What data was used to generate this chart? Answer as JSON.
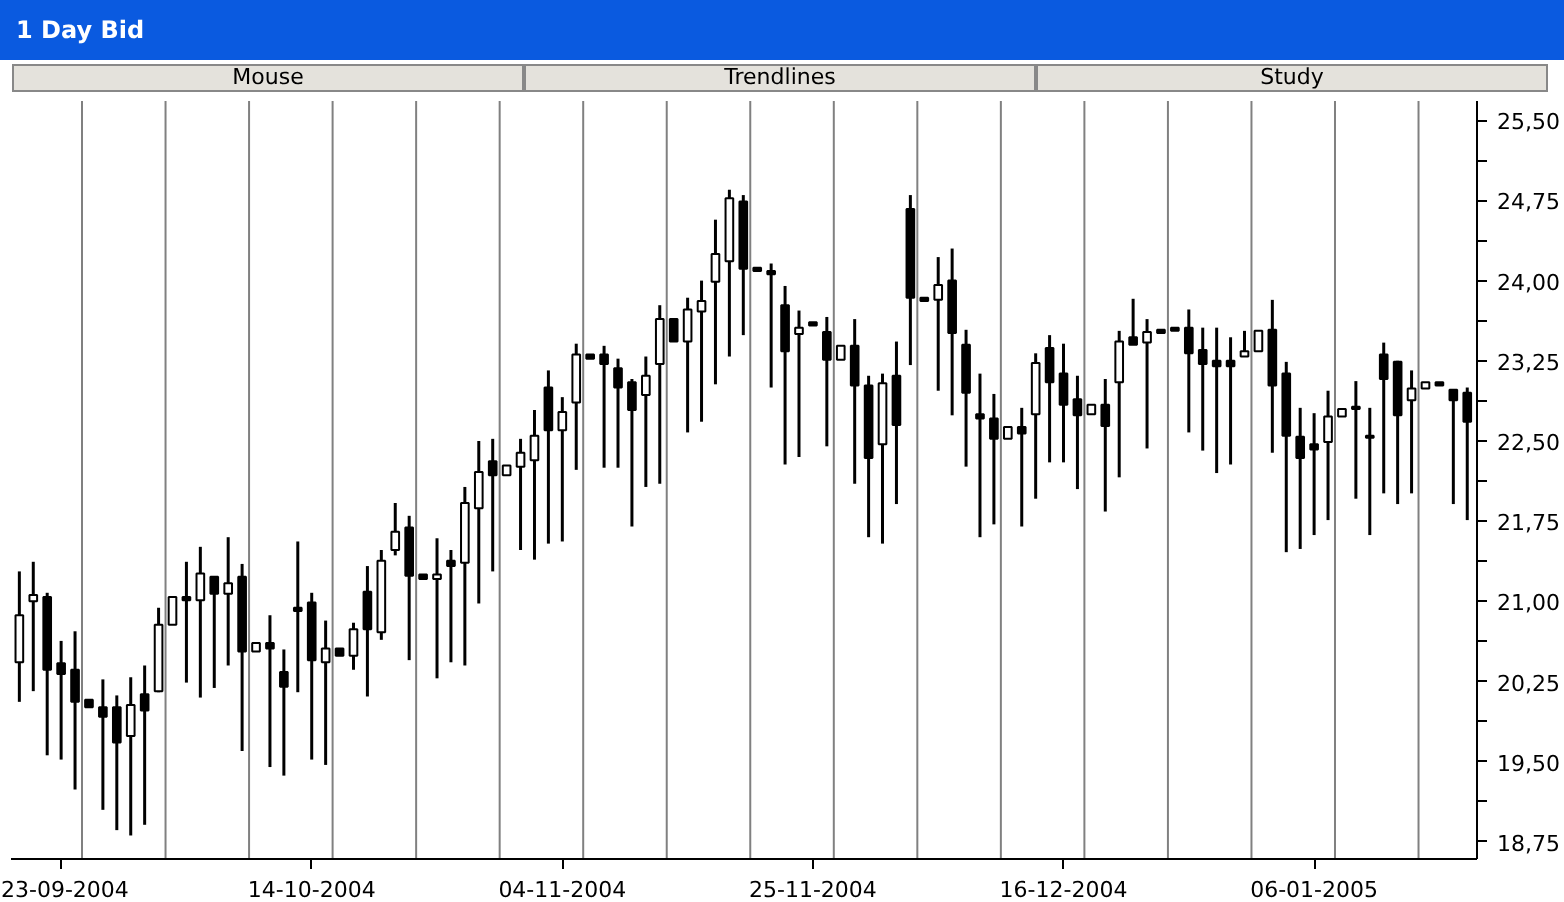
{
  "chart_data": {
    "type": "candlestick",
    "title": "1 Day Bid",
    "annotations": [
      "Mouse",
      "Trendlines",
      "Study"
    ],
    "categories": [
      null,
      null,
      null,
      "23-09-2004",
      null,
      null,
      null,
      null,
      null,
      null,
      null,
      null,
      null,
      null,
      null,
      null,
      null,
      null,
      null,
      null,
      null,
      "14-10-2004",
      null,
      null,
      null,
      null,
      null,
      null,
      null,
      null,
      null,
      null,
      null,
      null,
      null,
      null,
      null,
      null,
      null,
      "04-11-2004",
      null,
      null,
      null,
      null,
      null,
      null,
      null,
      null,
      null,
      null,
      null,
      null,
      null,
      null,
      null,
      null,
      null,
      "25-11-2004",
      null,
      null,
      null,
      null,
      null,
      null,
      null,
      null,
      null,
      null,
      null,
      null,
      null,
      null,
      null,
      null,
      null,
      "16-12-2004",
      null,
      null,
      null,
      null,
      null,
      null,
      null,
      null,
      null,
      null,
      null,
      null,
      null,
      null,
      null,
      null,
      null,
      "06-01-2005",
      null,
      null,
      null,
      null,
      null,
      null,
      null,
      null,
      null,
      null,
      null
    ],
    "ohlc": [
      [
        20.43,
        21.28,
        20.06,
        20.87
      ],
      [
        21.0,
        21.37,
        20.16,
        21.06
      ],
      [
        21.04,
        21.08,
        19.56,
        20.36
      ],
      [
        20.42,
        20.63,
        19.52,
        20.32
      ],
      [
        20.36,
        20.72,
        19.24,
        20.06
      ],
      [
        20.08,
        20.08,
        20.01,
        20.01
      ],
      [
        20.01,
        20.27,
        19.05,
        19.92
      ],
      [
        20.01,
        20.12,
        18.86,
        19.68
      ],
      [
        19.74,
        20.29,
        18.81,
        20.03
      ],
      [
        20.13,
        20.4,
        18.91,
        19.98
      ],
      [
        20.16,
        20.94,
        20.15,
        20.78
      ],
      [
        20.78,
        21.04,
        20.78,
        21.04
      ],
      [
        21.04,
        21.37,
        20.24,
        21.01
      ],
      [
        21.01,
        21.51,
        20.1,
        21.26
      ],
      [
        21.23,
        21.23,
        20.19,
        21.07
      ],
      [
        21.07,
        21.6,
        20.4,
        21.17
      ],
      [
        21.23,
        21.35,
        19.6,
        20.53
      ],
      [
        20.53,
        20.61,
        20.53,
        20.61
      ],
      [
        20.61,
        20.87,
        19.45,
        20.56
      ],
      [
        20.34,
        20.55,
        19.37,
        20.2
      ],
      [
        20.94,
        21.56,
        20.15,
        20.91
      ],
      [
        20.99,
        21.08,
        19.52,
        20.45
      ],
      [
        20.43,
        20.82,
        19.47,
        20.56
      ],
      [
        20.56,
        20.56,
        20.49,
        20.49
      ],
      [
        20.49,
        20.8,
        20.36,
        20.74
      ],
      [
        21.09,
        21.33,
        20.11,
        20.74
      ],
      [
        20.71,
        21.48,
        20.64,
        21.38
      ],
      [
        21.48,
        21.92,
        21.43,
        21.65
      ],
      [
        21.69,
        21.8,
        20.45,
        21.24
      ],
      [
        21.25,
        21.25,
        21.21,
        21.21
      ],
      [
        21.21,
        21.59,
        20.28,
        21.25
      ],
      [
        21.38,
        21.48,
        20.43,
        21.33
      ],
      [
        21.36,
        22.07,
        20.4,
        21.92
      ],
      [
        21.87,
        22.5,
        20.98,
        22.21
      ],
      [
        22.31,
        22.52,
        21.28,
        22.18
      ],
      [
        22.18,
        22.27,
        22.18,
        22.27
      ],
      [
        22.26,
        22.52,
        21.48,
        22.39
      ],
      [
        22.32,
        22.79,
        21.39,
        22.55
      ],
      [
        23.0,
        23.16,
        21.54,
        22.6
      ],
      [
        22.6,
        22.91,
        21.56,
        22.77
      ],
      [
        22.86,
        23.41,
        22.23,
        23.31
      ],
      [
        23.31,
        23.31,
        23.27,
        23.27
      ],
      [
        23.31,
        23.39,
        22.25,
        23.22
      ],
      [
        23.18,
        23.27,
        22.25,
        23.0
      ],
      [
        23.05,
        23.08,
        21.7,
        22.79
      ],
      [
        22.93,
        23.29,
        22.07,
        23.11
      ],
      [
        23.22,
        23.77,
        22.1,
        23.64
      ],
      [
        23.64,
        23.64,
        23.43,
        23.43
      ],
      [
        23.43,
        23.84,
        22.58,
        23.73
      ],
      [
        23.71,
        24.0,
        22.68,
        23.81
      ],
      [
        23.99,
        24.57,
        23.03,
        24.25
      ],
      [
        24.18,
        24.85,
        23.29,
        24.77
      ],
      [
        24.74,
        24.8,
        23.49,
        24.11
      ],
      [
        24.12,
        24.12,
        24.09,
        24.09
      ],
      [
        24.09,
        24.16,
        23.0,
        24.06
      ],
      [
        23.77,
        23.95,
        22.28,
        23.34
      ],
      [
        23.5,
        23.72,
        22.35,
        23.56
      ],
      [
        23.61,
        23.61,
        23.58,
        23.58
      ],
      [
        23.52,
        23.66,
        22.45,
        23.26
      ],
      [
        23.26,
        23.39,
        23.26,
        23.39
      ],
      [
        23.39,
        23.64,
        22.1,
        23.02
      ],
      [
        23.02,
        23.11,
        21.6,
        22.34
      ],
      [
        22.47,
        23.13,
        21.54,
        23.04
      ],
      [
        23.11,
        23.43,
        21.91,
        22.65
      ],
      [
        24.67,
        24.8,
        23.21,
        23.84
      ],
      [
        23.84,
        23.84,
        23.81,
        23.81
      ],
      [
        23.82,
        24.22,
        22.97,
        23.96
      ],
      [
        24.0,
        24.3,
        22.74,
        23.51
      ],
      [
        23.4,
        23.54,
        22.26,
        22.95
      ],
      [
        22.75,
        23.13,
        21.6,
        22.71
      ],
      [
        22.71,
        22.94,
        21.72,
        22.52
      ],
      [
        22.52,
        22.63,
        22.52,
        22.63
      ],
      [
        22.63,
        22.81,
        21.7,
        22.57
      ],
      [
        22.75,
        23.32,
        21.96,
        23.23
      ],
      [
        23.37,
        23.49,
        22.3,
        23.05
      ],
      [
        23.13,
        23.41,
        22.3,
        22.84
      ],
      [
        22.89,
        23.11,
        22.05,
        22.74
      ],
      [
        22.75,
        22.84,
        22.75,
        22.84
      ],
      [
        22.84,
        23.08,
        21.84,
        22.64
      ],
      [
        23.05,
        23.53,
        22.16,
        23.43
      ],
      [
        23.47,
        23.83,
        23.4,
        23.4
      ],
      [
        23.42,
        23.64,
        22.43,
        23.52
      ],
      [
        23.54,
        23.54,
        23.51,
        23.51
      ],
      [
        23.56,
        23.56,
        23.53,
        23.53
      ],
      [
        23.56,
        23.73,
        22.58,
        23.32
      ],
      [
        23.35,
        23.56,
        22.41,
        23.22
      ],
      [
        23.25,
        23.56,
        22.2,
        23.2
      ],
      [
        23.25,
        23.47,
        22.28,
        23.2
      ],
      [
        23.29,
        23.53,
        23.29,
        23.34
      ],
      [
        23.34,
        23.53,
        23.34,
        23.53
      ],
      [
        23.54,
        23.82,
        22.39,
        23.02
      ],
      [
        23.13,
        23.24,
        21.46,
        22.55
      ],
      [
        22.54,
        22.81,
        21.49,
        22.34
      ],
      [
        22.47,
        22.76,
        21.62,
        22.42
      ],
      [
        22.49,
        22.97,
        21.76,
        22.73
      ],
      [
        22.73,
        22.8,
        22.73,
        22.8
      ],
      [
        22.82,
        23.06,
        21.96,
        22.8
      ],
      [
        22.55,
        22.81,
        21.62,
        22.53
      ],
      [
        23.31,
        23.42,
        22.01,
        23.08
      ],
      [
        23.24,
        23.25,
        21.91,
        22.74
      ],
      [
        22.88,
        23.16,
        22.01,
        22.99
      ],
      [
        22.99,
        23.05,
        22.99,
        23.05
      ],
      [
        23.05,
        23.05,
        23.02,
        23.02
      ],
      [
        22.98,
        22.98,
        21.91,
        22.88
      ],
      [
        22.95,
        23.0,
        21.76,
        22.68
      ]
    ],
    "ylim": [
      18.59,
      25.68
    ],
    "yticks": [
      {
        "value": 18.75,
        "label": "18,75"
      },
      {
        "value": 19.125,
        "label": null
      },
      {
        "value": 19.5,
        "label": "19,50"
      },
      {
        "value": 19.875,
        "label": null
      },
      {
        "value": 20.25,
        "label": "20,25"
      },
      {
        "value": 20.625,
        "label": null
      },
      {
        "value": 21.0,
        "label": "21,00"
      },
      {
        "value": 21.375,
        "label": null
      },
      {
        "value": 21.75,
        "label": "21,75"
      },
      {
        "value": 22.125,
        "label": null
      },
      {
        "value": 22.5,
        "label": "22,50"
      },
      {
        "value": 22.875,
        "label": null
      },
      {
        "value": 23.25,
        "label": "23,25"
      },
      {
        "value": 23.625,
        "label": null
      },
      {
        "value": 24.0,
        "label": "24,00"
      },
      {
        "value": 24.375,
        "label": null
      },
      {
        "value": 24.75,
        "label": "24,75"
      },
      {
        "value": 25.125,
        "label": null
      },
      {
        "value": 25.5,
        "label": "25,50"
      }
    ],
    "grid": "x"
  }
}
